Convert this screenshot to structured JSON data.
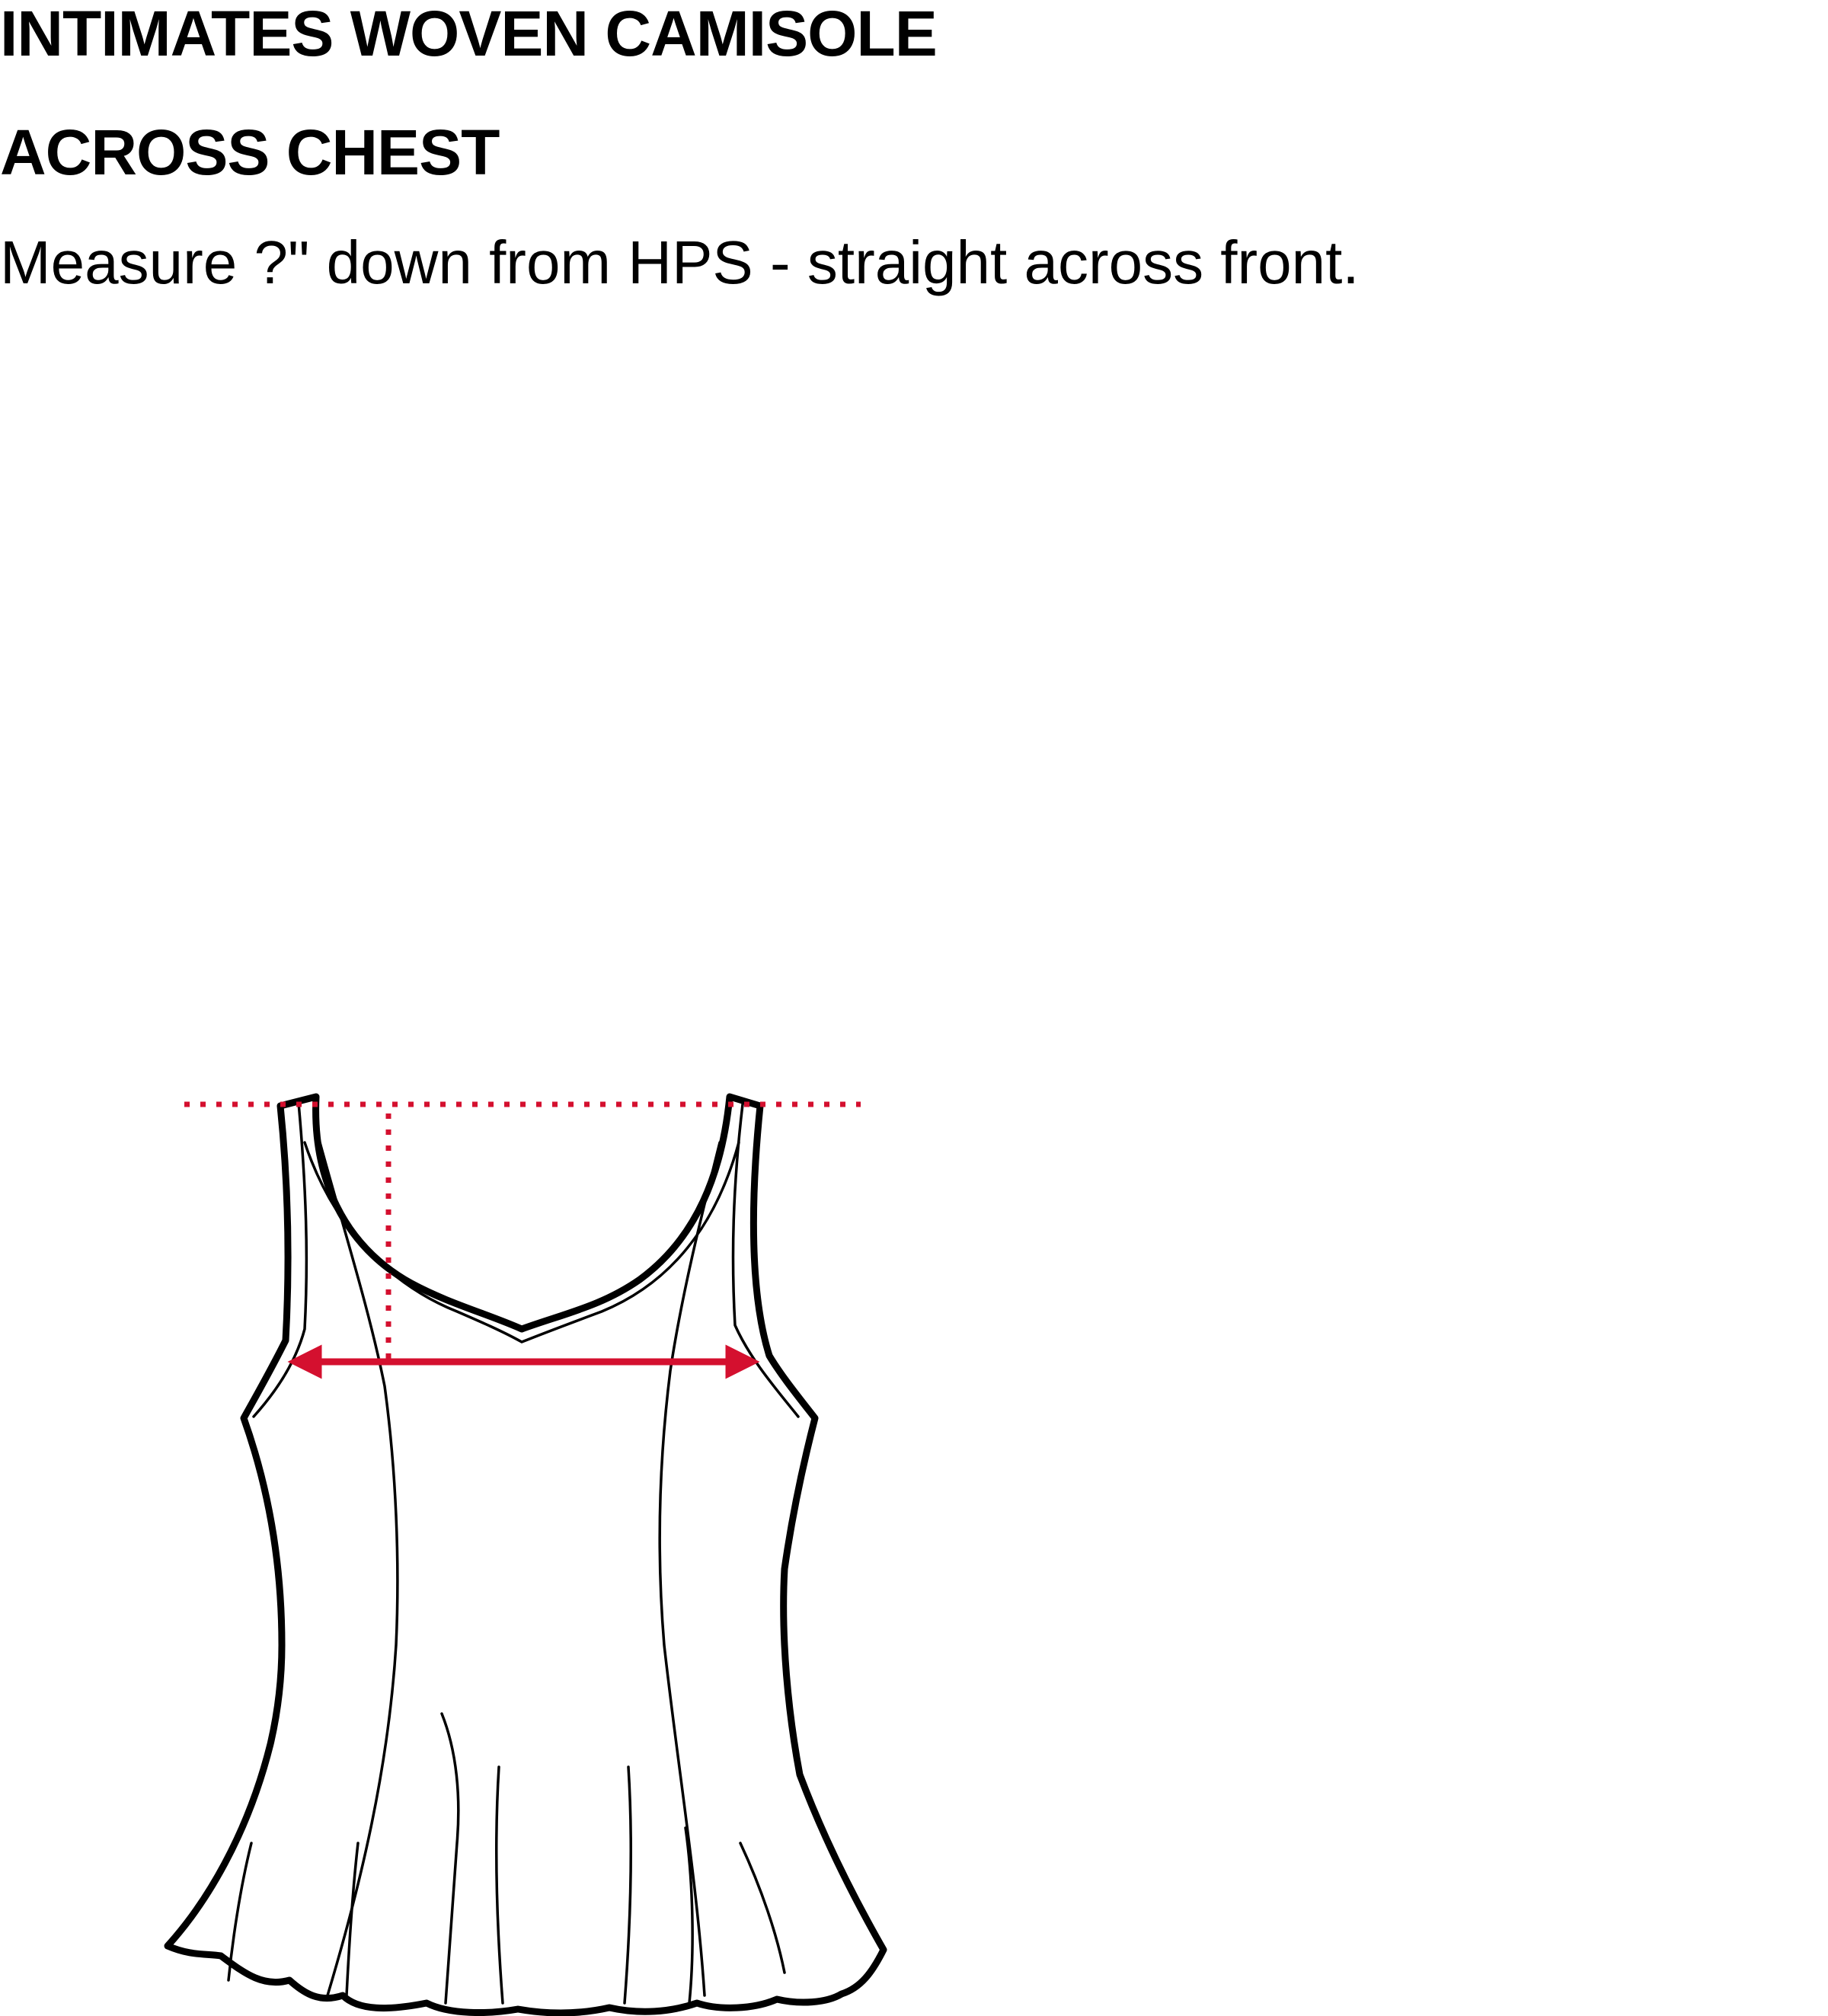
{
  "header": {
    "title": "INTIMATES WOVEN CAMISOLE",
    "measurement_name": "ACROSS CHEST",
    "instruction": "Measure ?\" down from HPS - straight across front."
  },
  "diagram": {
    "garment": "camisole-front-flat-sketch",
    "measure_color": "#d4102f",
    "line_color": "#000000"
  }
}
